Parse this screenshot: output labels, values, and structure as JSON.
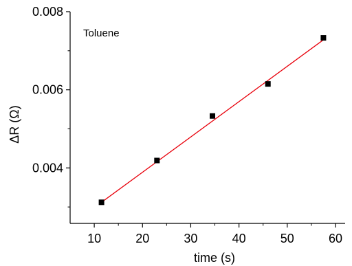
{
  "chart_data": {
    "type": "scatter",
    "title": "",
    "xlabel": "time (s)",
    "ylabel": "ΔR (Ω)",
    "xlim": [
      5,
      62
    ],
    "ylim": [
      0.00258,
      0.008
    ],
    "xticks": [
      10,
      20,
      30,
      40,
      50,
      60
    ],
    "yticks": [
      0.004,
      0.006,
      0.008
    ],
    "ytick_labels": [
      "0.004",
      "0.006",
      "0.008"
    ],
    "grid": false,
    "annotation": "Toluene",
    "series": [
      {
        "marker": "square",
        "color": "#000000",
        "x": [
          11.5,
          23.0,
          34.5,
          46.0,
          57.5
        ],
        "y": [
          0.00312,
          0.00419,
          0.00533,
          0.00615,
          0.00733
        ]
      }
    ],
    "fit_line": {
      "color": "#e8000b",
      "x": [
        11.5,
        57.5
      ],
      "y": [
        0.00312,
        0.00728
      ]
    }
  }
}
